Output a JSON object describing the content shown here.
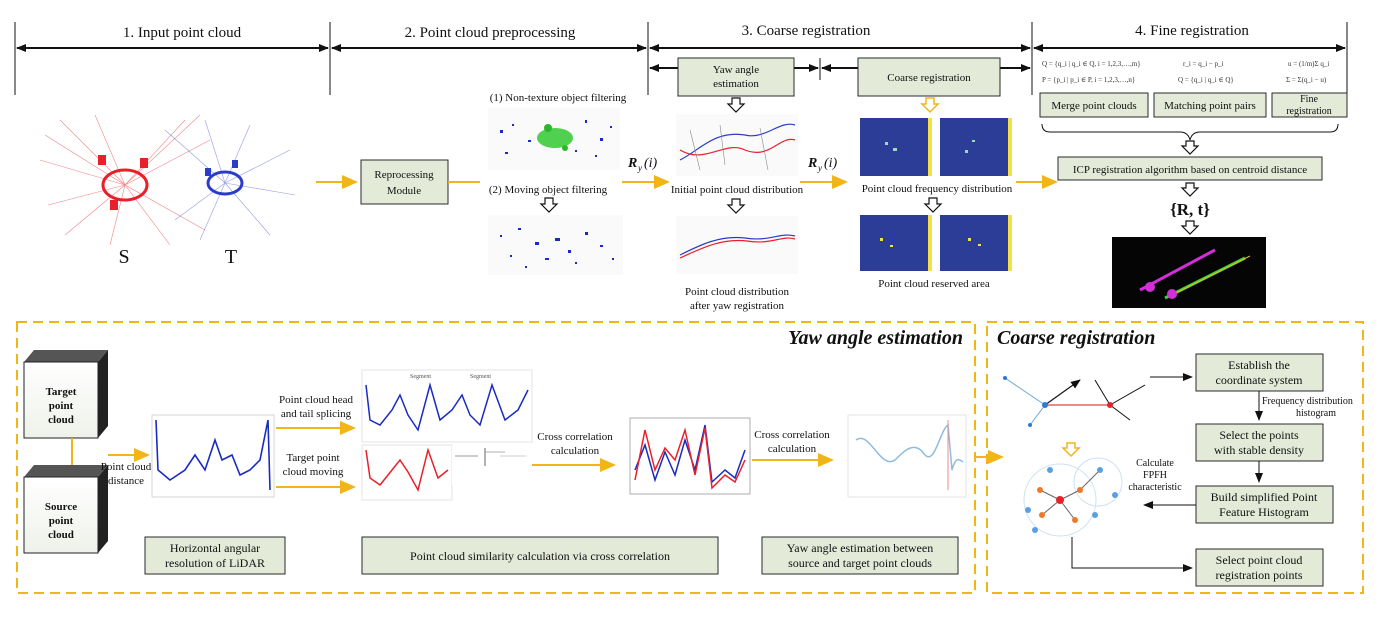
{
  "stages": {
    "s1": "1. Input point cloud",
    "s2": "2. Point cloud preprocessing",
    "s3": "3. Coarse registration",
    "s4": "4. Fine registration"
  },
  "top": {
    "source_label": "S",
    "target_label": "T",
    "preprocessing_module_line1": "Reprocessing",
    "preprocessing_module_line2": "Module",
    "filter1": "(1) Non-texture object filtering",
    "filter2": "(2) Moving object filtering",
    "r_label": "R",
    "r_sub": "y",
    "r_arg": "(i)",
    "yaw_box_line1": "Yaw angle",
    "yaw_box_line2": "estimation",
    "initial_dist": "Initial point cloud distribution",
    "after_yaw_line1": "Point cloud distribution",
    "after_yaw_line2": "after yaw registration",
    "coarse_box": "Coarse registration",
    "freq_dist": "Point cloud frequency distribution",
    "reserved_area": "Point cloud reserved area",
    "formula1": "Q = {q_i | q_i ∈ Q, i = 1,2,3,…,m}",
    "formula2": "P = {p_i | p_i ∈ P, i = 1,2,3,…,n}",
    "formula3": "r_i = q_i − p_i",
    "formula4": "Q = {q_i | q_i ∈ Q}",
    "formula5": "u = (1/m)Σ q_i",
    "formula6": "Σ = Σ(q_i − u)",
    "merge": "Merge point clouds",
    "matching": "Matching point pairs",
    "fine_line1": "Fine",
    "fine_line2": "registration",
    "icp": "ICP registration algorithm based on centroid distance",
    "rt": "{R, t}"
  },
  "yaw_section": {
    "title": "Yaw angle estimation",
    "target_cube_line1": "Target",
    "target_cube_line2": "point",
    "target_cube_line3": "cloud",
    "source_cube_line1": "Source",
    "source_cube_line2": "point",
    "source_cube_line3": "cloud",
    "distance_line1": "Point cloud",
    "distance_line2": "distance",
    "splice_line1": "Point cloud head",
    "splice_line2": "and tail splicing",
    "moving_line1": "Target point",
    "moving_line2": "cloud moving",
    "cc1_line1": "Cross correlation",
    "cc1_line2": "calculation",
    "cc2_line1": "Cross correlation",
    "cc2_line2": "calculation",
    "horiz_line1": "Horizontal angular",
    "horiz_line2": "resolution of LiDAR",
    "similarity": "Point cloud similarity calculation via cross correlation",
    "yaw_est_line1": "Yaw angle estimation between",
    "yaw_est_line2": "source and target point clouds",
    "segment_a": "Segment",
    "segment_b": "Segment"
  },
  "coarse_section": {
    "title": "Coarse registration",
    "establish_line1": "Establish the",
    "establish_line2": "coordinate system",
    "freq_hist_line1": "Frequency distribution",
    "freq_hist_line2": "histogram",
    "select_line1": "Select the points",
    "select_line2": "with stable density",
    "calc_line1": "Calculate",
    "calc_line2": "FPFH",
    "calc_line3": "characteristic",
    "build_line1": "Build simplified Point",
    "build_line2": "Feature Histogram",
    "select_reg_line1": "Select point cloud",
    "select_reg_line2": "registration points"
  },
  "colors": {
    "arrow": "#f2b517",
    "box_fill": "#e3ead8",
    "source_red": "#e8202a",
    "target_blue": "#2a3cc8"
  }
}
